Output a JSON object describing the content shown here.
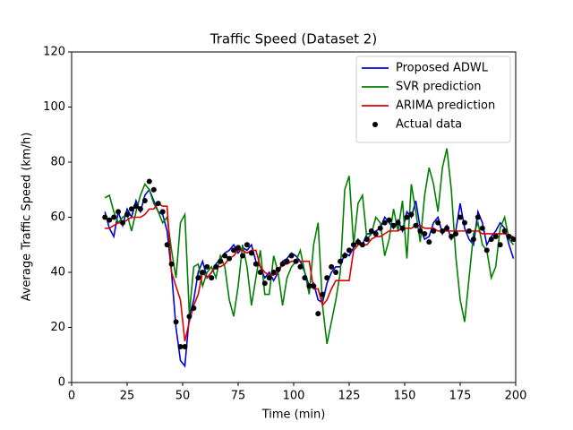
{
  "chart_data": {
    "type": "line",
    "title": "Traffic Speed (Dataset 2)",
    "xlabel": "Time (min)",
    "ylabel": "Average Traffic Speed (km/h)",
    "xlim": [
      0,
      200
    ],
    "ylim": [
      0,
      120
    ],
    "xticks": [
      0,
      25,
      50,
      75,
      100,
      125,
      150,
      175,
      200
    ],
    "yticks": [
      0,
      20,
      40,
      60,
      80,
      100,
      120
    ],
    "legend": "upper right",
    "x": [
      15,
      17,
      19,
      21,
      23,
      25,
      27,
      29,
      31,
      33,
      35,
      37,
      39,
      41,
      43,
      45,
      47,
      49,
      51,
      53,
      55,
      57,
      59,
      61,
      63,
      65,
      67,
      69,
      71,
      73,
      75,
      77,
      79,
      81,
      83,
      85,
      87,
      89,
      91,
      93,
      95,
      97,
      99,
      101,
      103,
      105,
      107,
      109,
      111,
      113,
      115,
      117,
      119,
      121,
      123,
      125,
      127,
      129,
      131,
      133,
      135,
      137,
      139,
      141,
      143,
      145,
      147,
      149,
      151,
      153,
      155,
      157,
      159,
      161,
      163,
      165,
      167,
      169,
      171,
      173,
      175,
      177,
      179,
      181,
      183,
      185,
      187,
      189,
      191,
      193,
      195,
      197,
      199
    ],
    "series": [
      {
        "name": "Proposed ADWL",
        "color": "#0000dd",
        "type": "line",
        "values": [
          62,
          56,
          53,
          62,
          57,
          63,
          60,
          66,
          62,
          68,
          70,
          66,
          62,
          61,
          55,
          40,
          20,
          8,
          6,
          24,
          30,
          40,
          44,
          38,
          40,
          43,
          45,
          47,
          48,
          50,
          47,
          49,
          48,
          50,
          44,
          42,
          38,
          40,
          37,
          40,
          44,
          45,
          47,
          46,
          44,
          40,
          35,
          36,
          30,
          29,
          36,
          40,
          42,
          42,
          47,
          46,
          49,
          52,
          50,
          54,
          54,
          55,
          56,
          60,
          58,
          56,
          59,
          55,
          62,
          60,
          66,
          56,
          52,
          53,
          58,
          60,
          54,
          57,
          52,
          55,
          65,
          56,
          52,
          50,
          62,
          58,
          50,
          53,
          55,
          58,
          56,
          50,
          45
        ]
      },
      {
        "name": "SVR prediction",
        "color": "#008000",
        "type": "line",
        "values": [
          67,
          68,
          62,
          58,
          60,
          61,
          55,
          62,
          68,
          72,
          70,
          65,
          62,
          58,
          60,
          48,
          38,
          58,
          61,
          25,
          42,
          43,
          35,
          40,
          42,
          38,
          46,
          42,
          30,
          24,
          35,
          50,
          42,
          28,
          38,
          48,
          32,
          32,
          46,
          40,
          28,
          38,
          42,
          44,
          48,
          40,
          32,
          50,
          58,
          28,
          14,
          22,
          30,
          40,
          70,
          75,
          50,
          65,
          68,
          52,
          54,
          60,
          58,
          46,
          52,
          63,
          55,
          66,
          45,
          72,
          62,
          51,
          68,
          78,
          72,
          62,
          78,
          85,
          70,
          46,
          30,
          22,
          38,
          54,
          58,
          50,
          48,
          38,
          42,
          56,
          60,
          52,
          50
        ]
      },
      {
        "name": "ARIMA prediction",
        "color": "#dd0000",
        "type": "line",
        "values": [
          56,
          56,
          57,
          58,
          58,
          59,
          60,
          60,
          60,
          61,
          63,
          63,
          65,
          64,
          64,
          40,
          35,
          30,
          15,
          22,
          28,
          32,
          40,
          38,
          40,
          42,
          42,
          43,
          45,
          46,
          48,
          48,
          47,
          48,
          48,
          42,
          40,
          39,
          39,
          40,
          43,
          43,
          44,
          44,
          44,
          44,
          44,
          34,
          34,
          28,
          30,
          34,
          37,
          37,
          37,
          37,
          48,
          50,
          50,
          50,
          52,
          53,
          53,
          54,
          55,
          55,
          55,
          56,
          56,
          56,
          57,
          57,
          56,
          56,
          56,
          55,
          55,
          55,
          55,
          55,
          55,
          55,
          55,
          55,
          55,
          54,
          54,
          54,
          54,
          54,
          54,
          53,
          53
        ]
      },
      {
        "name": "Actual data",
        "color": "#000000",
        "type": "scatter",
        "values": [
          60,
          59,
          60,
          62,
          58,
          61,
          63,
          64,
          63,
          66,
          73,
          70,
          65,
          62,
          50,
          43,
          22,
          13,
          13,
          24,
          27,
          38,
          40,
          42,
          38,
          42,
          44,
          46,
          45,
          48,
          49,
          46,
          50,
          47,
          43,
          40,
          36,
          38,
          40,
          41,
          43,
          44,
          46,
          44,
          42,
          38,
          35,
          35,
          25,
          32,
          38,
          42,
          40,
          44,
          46,
          48,
          50,
          51,
          50,
          52,
          55,
          54,
          56,
          58,
          59,
          57,
          58,
          56,
          60,
          61,
          57,
          55,
          54,
          51,
          55,
          58,
          55,
          56,
          53,
          54,
          60,
          58,
          55,
          52,
          60,
          56,
          48,
          52,
          53,
          50,
          55,
          53,
          52
        ]
      }
    ]
  }
}
